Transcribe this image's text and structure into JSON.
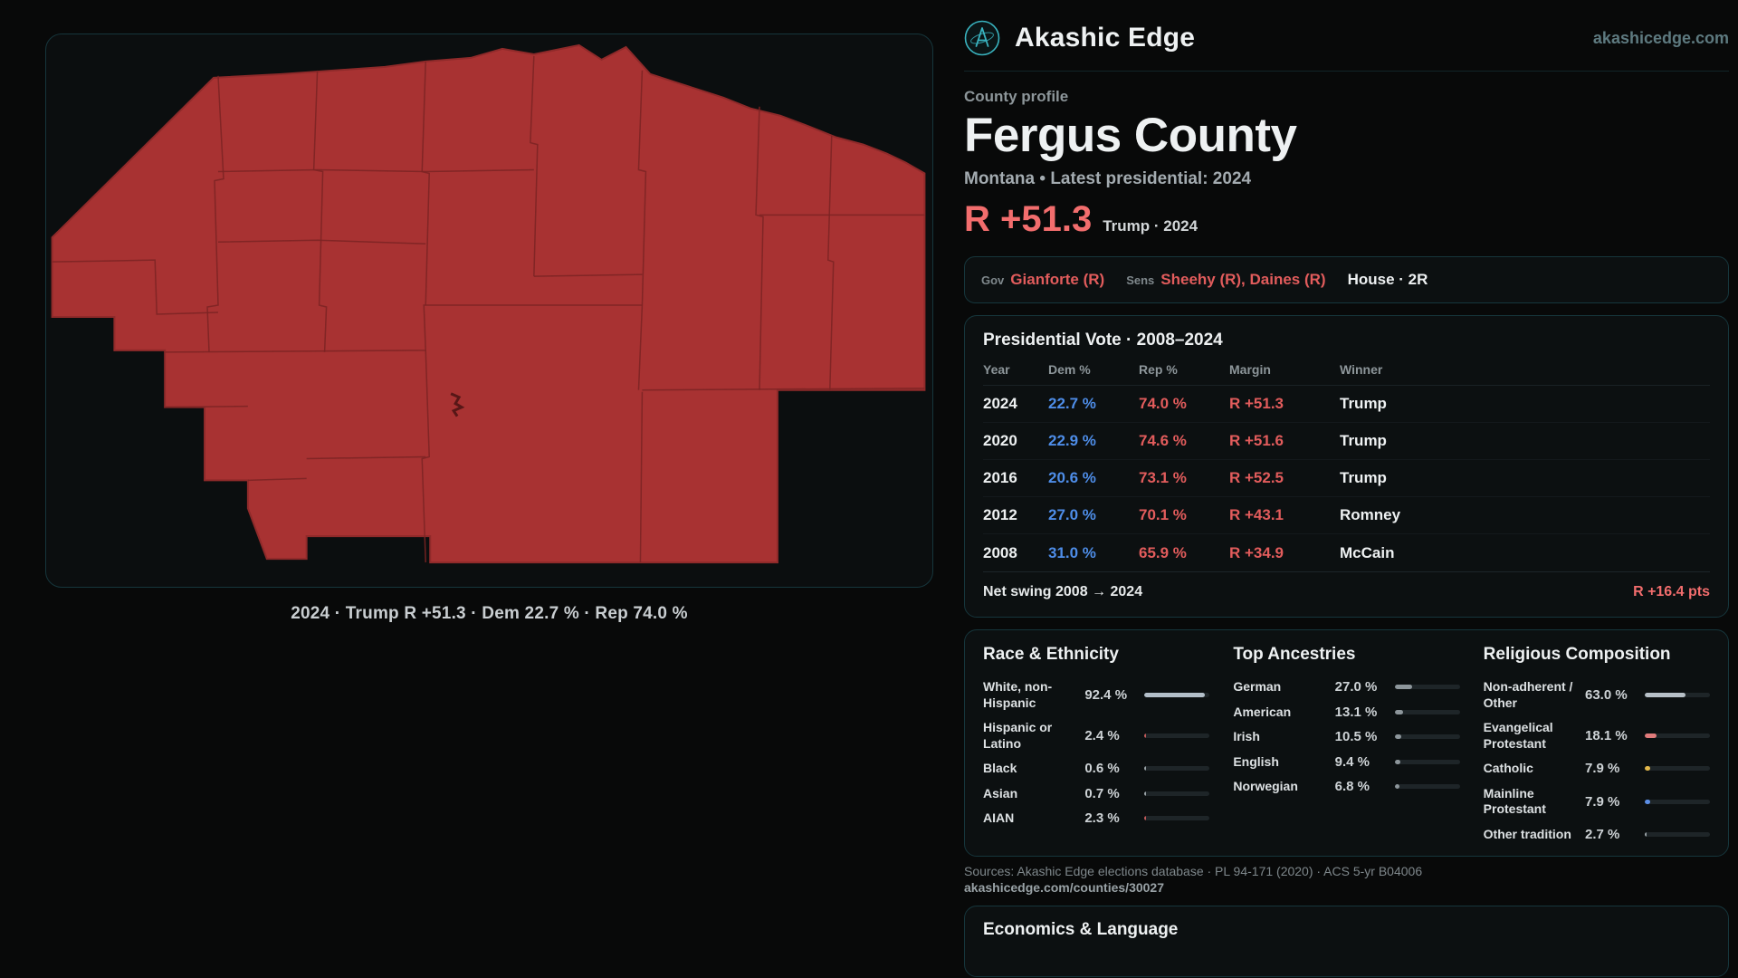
{
  "theme": {
    "page_bg": "#080909",
    "panel_bg": "#0c1011",
    "border": "#16363c",
    "red": "#e25c5c",
    "red_bright": "#f26d6d",
    "blue": "#4e8de8",
    "teal": "#39b3bf",
    "map_fill": "#a83232",
    "map_line": "#7c2424"
  },
  "brand": {
    "name": "Akashic Edge",
    "site": "akashicedge.com",
    "logo_icon": "compass-emblem-icon"
  },
  "map": {
    "caption": "2024 · Trump R +51.3 · Dem 22.7 % · Rep 74.0 %"
  },
  "profile": {
    "kicker": "County profile",
    "title": "Fergus County",
    "subtitle": "Montana • Latest presidential: 2024",
    "margin": "R +51.3",
    "margin_note": "Trump · 2024"
  },
  "officials": {
    "gov_label": "Gov",
    "gov": "Gianforte (R)",
    "sens_label": "Sens",
    "sens": "Sheehy (R), Daines (R)",
    "house": "House · 2R"
  },
  "presidential": {
    "title": "Presidential Vote · 2008–2024",
    "columns": [
      "Year",
      "Dem %",
      "Rep %",
      "Margin",
      "Winner"
    ],
    "rows": [
      {
        "year": "2024",
        "dem": "22.7 %",
        "rep": "74.0 %",
        "margin": "R +51.3",
        "winner": "Trump"
      },
      {
        "year": "2020",
        "dem": "22.9 %",
        "rep": "74.6 %",
        "margin": "R +51.6",
        "winner": "Trump"
      },
      {
        "year": "2016",
        "dem": "20.6 %",
        "rep": "73.1 %",
        "margin": "R +52.5",
        "winner": "Trump"
      },
      {
        "year": "2012",
        "dem": "27.0 %",
        "rep": "70.1 %",
        "margin": "R +43.1",
        "winner": "Romney"
      },
      {
        "year": "2008",
        "dem": "31.0 %",
        "rep": "65.9 %",
        "margin": "R +34.9",
        "winner": "McCain"
      }
    ],
    "swing_label": "Net swing 2008 → 2024",
    "swing_value": "R +16.4 pts"
  },
  "demographics": {
    "race": {
      "title": "Race & Ethnicity",
      "rows": [
        {
          "label": "White, non-Hispanic",
          "value": "92.4 %",
          "pct": 92.4,
          "color": "#b3bfc9"
        },
        {
          "label": "Hispanic or Latino",
          "value": "2.4 %",
          "pct": 2.4,
          "color": "#c25a5a"
        },
        {
          "label": "Black",
          "value": "0.6 %",
          "pct": 0.6,
          "color": "#9aa3a7"
        },
        {
          "label": "Asian",
          "value": "0.7 %",
          "pct": 0.7,
          "color": "#9aa3a7"
        },
        {
          "label": "AIAN",
          "value": "2.3 %",
          "pct": 2.3,
          "color": "#c25a5a"
        }
      ]
    },
    "ancestries": {
      "title": "Top Ancestries",
      "rows": [
        {
          "label": "German",
          "value": "27.0 %",
          "pct": 27.0,
          "color": "#8d969b"
        },
        {
          "label": "American",
          "value": "13.1 %",
          "pct": 13.1,
          "color": "#8d969b"
        },
        {
          "label": "Irish",
          "value": "10.5 %",
          "pct": 10.5,
          "color": "#8d969b"
        },
        {
          "label": "English",
          "value": "9.4 %",
          "pct": 9.4,
          "color": "#8d969b"
        },
        {
          "label": "Norwegian",
          "value": "6.8 %",
          "pct": 6.8,
          "color": "#8d969b"
        }
      ]
    },
    "religion": {
      "title": "Religious Composition",
      "rows": [
        {
          "label": "Non-adherent / Other",
          "value": "63.0 %",
          "pct": 63.0,
          "color": "#b7c0c7"
        },
        {
          "label": "Evangelical Protestant",
          "value": "18.1 %",
          "pct": 18.1,
          "color": "#e07b7b"
        },
        {
          "label": "Catholic",
          "value": "7.9 %",
          "pct": 7.9,
          "color": "#e3b84a"
        },
        {
          "label": "Mainline Protestant",
          "value": "7.9 %",
          "pct": 7.9,
          "color": "#5b8ee6"
        },
        {
          "label": "Other tradition",
          "value": "2.7 %",
          "pct": 2.7,
          "color": "#9aa3a7"
        }
      ]
    }
  },
  "sources": {
    "line1": "Sources: Akashic Edge elections database · PL 94-171 (2020) · ACS 5-yr B04006",
    "line2": "akashicedge.com/counties/30027"
  },
  "economics": {
    "title": "Economics & Language"
  }
}
